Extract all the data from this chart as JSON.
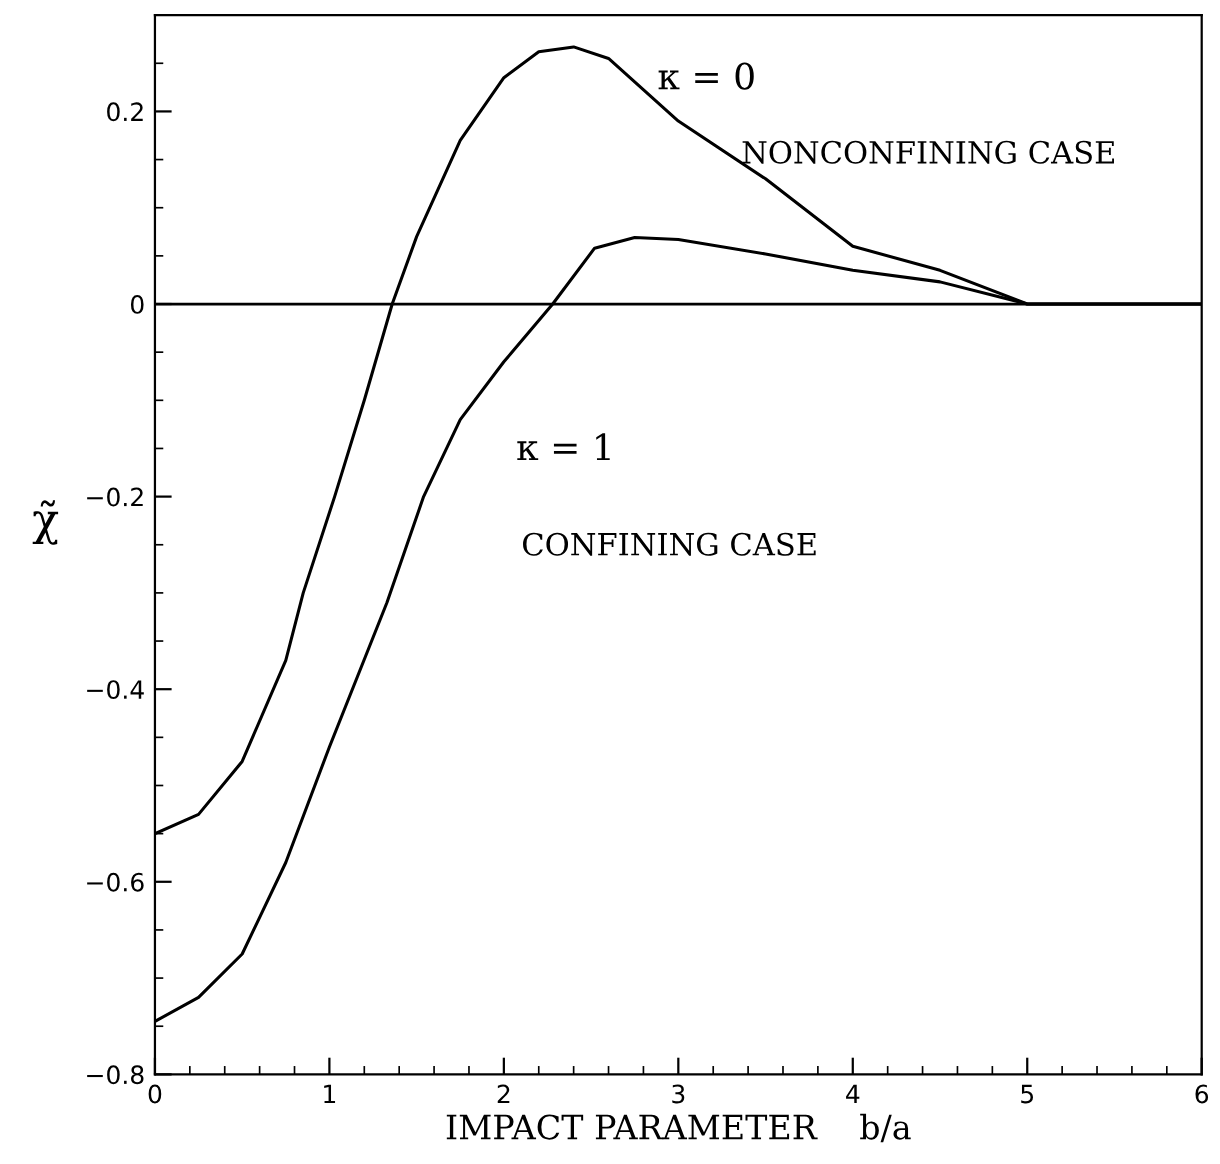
{
  "chart_data": {
    "type": "line",
    "xlabel": "IMPACT PARAMETER    b/a",
    "ylabel": "χ̃",
    "annotations": [
      "κ = 0",
      "NONCONFINING CASE",
      "κ = 1",
      "CONFINING CASE"
    ],
    "series": [
      {
        "color": "#000000",
        "x": [
          0,
          0.25,
          0.5,
          0.75,
          0.85,
          1.03,
          1.2,
          1.36,
          1.5,
          1.75,
          2.0,
          2.2,
          2.4,
          2.6,
          3.0,
          3.5,
          4.0,
          4.5,
          5.0,
          5.5,
          6.0
        ],
        "values": [
          -0.55,
          -0.53,
          -0.475,
          -0.37,
          -0.3,
          -0.2,
          -0.1,
          0,
          0.07,
          0.17,
          0.235,
          0.262,
          0.267,
          0.255,
          0.19,
          0.13,
          0.06,
          0.035,
          0.0,
          0.0,
          0.0
        ]
      },
      {
        "color": "#000000",
        "x": [
          0,
          0.25,
          0.5,
          0.75,
          1.0,
          1.33,
          1.54,
          1.75,
          2.0,
          2.28,
          2.52,
          2.75,
          3.0,
          3.5,
          4.0,
          4.5,
          5.0,
          5.5,
          6.0
        ],
        "values": [
          -0.745,
          -0.72,
          -0.675,
          -0.58,
          -0.46,
          -0.31,
          -0.2,
          -0.12,
          -0.06,
          0,
          0.058,
          0.069,
          0.067,
          0.052,
          0.035,
          0.023,
          0.0,
          0.0,
          0.0
        ]
      }
    ],
    "ref_lines": [
      {
        "axis": "y",
        "value": 0,
        "color": "#000000"
      }
    ],
    "xlim": [
      0,
      6
    ],
    "ylim": [
      -0.8,
      0.3
    ],
    "xticks": [
      0,
      1,
      2,
      3,
      4,
      5,
      6
    ],
    "yticks": [
      -0.8,
      -0.6,
      -0.4,
      -0.2,
      0,
      0.2
    ],
    "grid": false,
    "legend": false,
    "marker": "none",
    "line_style": "solid"
  }
}
